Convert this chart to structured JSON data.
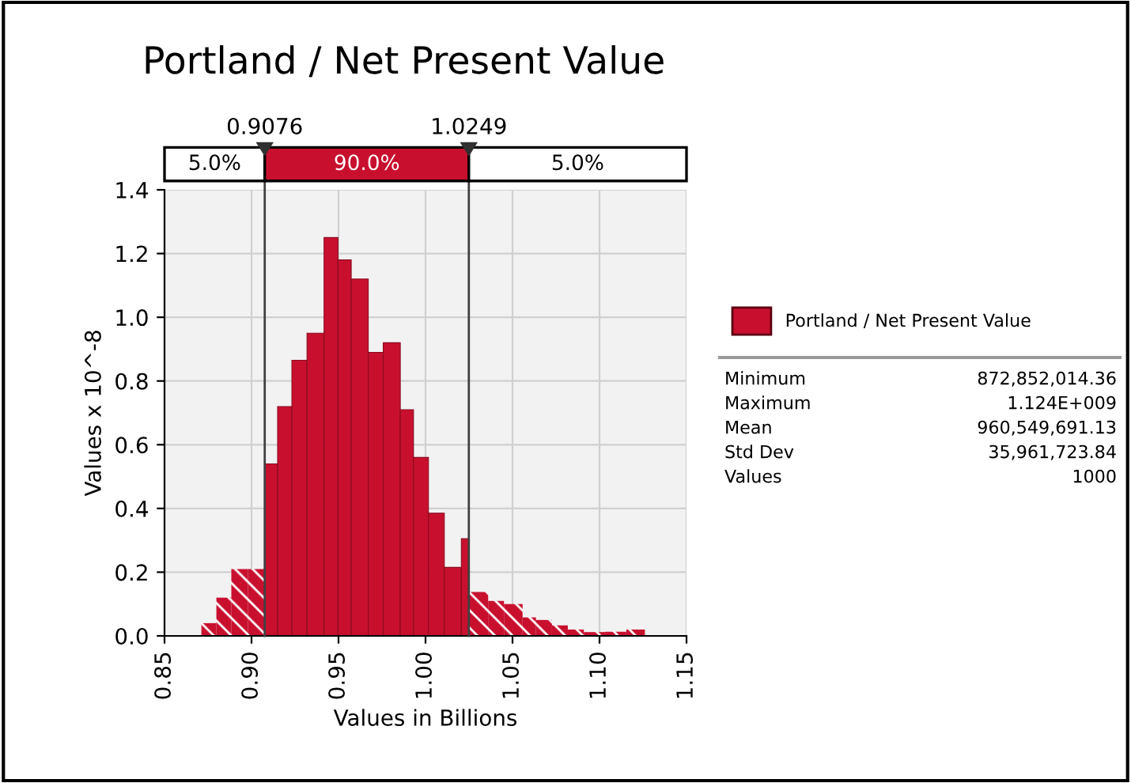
{
  "chart_data": {
    "type": "histogram",
    "title": "Portland / Net Present Value",
    "xlabel": "Values in Billions",
    "ylabel": "Values x 10^-8",
    "bins": [
      0.8712,
      0.8798,
      0.8884,
      0.898,
      0.9076,
      0.915,
      0.9232,
      0.9319,
      0.9417,
      0.9497,
      0.9573,
      0.9671,
      0.9757,
      0.9855,
      0.9931,
      1.0017,
      1.0108,
      1.0206,
      1.0249,
      1.036,
      1.0451,
      1.0558,
      1.0635,
      1.0727,
      1.0818,
      1.091,
      1.1032,
      1.1154,
      1.1261
    ],
    "series": [
      {
        "name": "Portland / Net Present Value",
        "color": "#c8102e",
        "values": [
          0.04,
          0.12,
          0.21,
          0.21,
          0.54,
          0.72,
          0.865,
          0.95,
          1.25,
          1.18,
          1.12,
          0.89,
          0.92,
          0.71,
          0.56,
          0.385,
          0.215,
          0.305,
          0.138,
          0.11,
          0.1,
          0.058,
          0.05,
          0.033,
          0.02,
          0.012,
          0.013,
          0.02
        ]
      }
    ],
    "xlim": [
      0.85,
      1.15
    ],
    "xticks": [
      {
        "value": 0.85,
        "label": "0.85"
      },
      {
        "value": 0.9,
        "label": "0.90"
      },
      {
        "value": 0.95,
        "label": "0.95"
      },
      {
        "value": 1.0,
        "label": "1.00"
      },
      {
        "value": 1.05,
        "label": "1.05"
      },
      {
        "value": 1.1,
        "label": "1.10"
      },
      {
        "value": 1.15,
        "label": "1.15"
      }
    ],
    "ylim": [
      0,
      1.4
    ],
    "yticks": [
      {
        "value": 0,
        "label": "0.0"
      },
      {
        "value": 0.2,
        "label": "0.2"
      },
      {
        "value": 0.4,
        "label": "0.4"
      },
      {
        "value": 0.6,
        "label": "0.6"
      },
      {
        "value": 0.8,
        "label": "0.8"
      },
      {
        "value": 1.0,
        "label": "1.0"
      },
      {
        "value": 1.2,
        "label": "1.2"
      },
      {
        "value": 1.4,
        "label": "1.4"
      }
    ],
    "ref_lines": [
      {
        "axis": "x",
        "value": 0.9076,
        "label": "0.9076",
        "color": "#404040"
      },
      {
        "axis": "x",
        "value": 1.0249,
        "label": "1.0249",
        "color": "#404040"
      }
    ],
    "annotations": [
      "5.0%",
      "90.0%",
      "5.0%",
      "Minimum",
      "872,852,014.36",
      "Maximum",
      "1.124E+009",
      "Mean",
      "960,549,691.13",
      "Std Dev",
      "35,961,723.84",
      "Values",
      "1000"
    ],
    "grid": true,
    "legend": "right"
  }
}
